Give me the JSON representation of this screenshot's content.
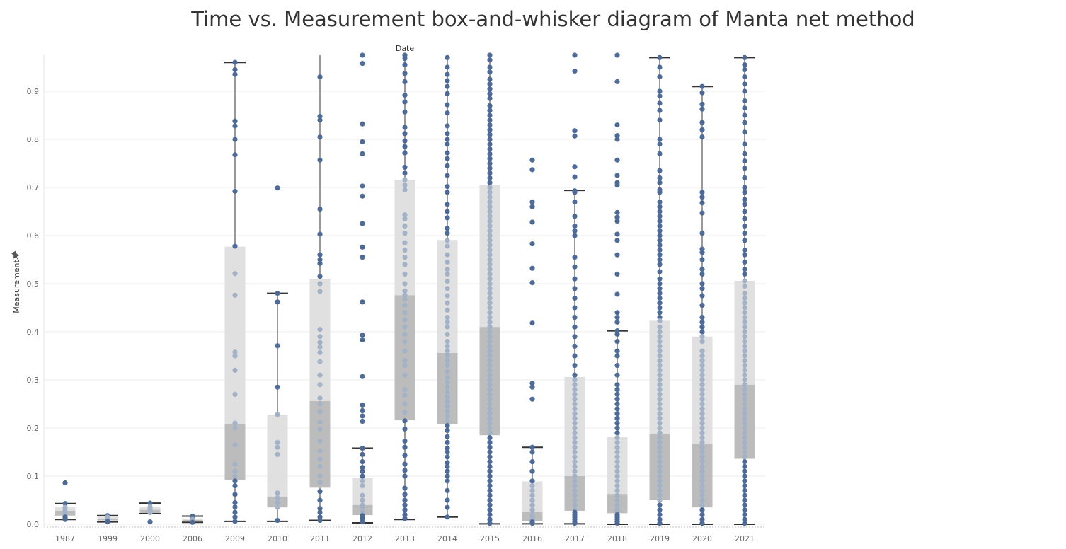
{
  "title": "Time vs. Measurement box-and-whisker diagram of Manta net method",
  "chart_data": {
    "type": "scatter",
    "subtype": "box-and-whisker with jittered points",
    "title": "Time vs. Measurement box-and-whisker diagram of Manta net method",
    "xlabel": "Date",
    "ylabel": "Measurement",
    "categories": [
      "1987",
      "1999",
      "2000",
      "2006",
      "2009",
      "2010",
      "2011",
      "2012",
      "2013",
      "2014",
      "2015",
      "2016",
      "2017",
      "2018",
      "2019",
      "2020",
      "2021"
    ],
    "ylim": [
      0,
      0.98
    ],
    "yticks": [
      0.0,
      0.1,
      0.2,
      0.3,
      0.4,
      0.5,
      0.6,
      0.7,
      0.8,
      0.9
    ],
    "ytick_labels": [
      "0.0",
      "0.1",
      "0.2",
      "0.3",
      "0.4",
      "0.5",
      "0.6",
      "0.7",
      "0.8",
      "0.9"
    ],
    "grid": true,
    "colors": {
      "point_outside": "#4e6a96",
      "point_inside": "#a4b2c7",
      "upper_box": "#e0e0e0",
      "lower_box": "#bcbcbc",
      "whisker": "#333333"
    },
    "boxes": [
      {
        "category": "1987",
        "q1": 0.018,
        "median": 0.028,
        "q3": 0.035,
        "whisker_low": 0.01,
        "whisker_high": 0.043
      },
      {
        "category": "1999",
        "q1": 0.008,
        "median": 0.012,
        "q3": 0.016,
        "whisker_low": 0.005,
        "whisker_high": 0.018
      },
      {
        "category": "2000",
        "q1": 0.022,
        "median": 0.03,
        "q3": 0.036,
        "whisker_low": 0.022,
        "whisker_high": 0.044
      },
      {
        "category": "2006",
        "q1": 0.006,
        "median": 0.009,
        "q3": 0.012,
        "whisker_low": 0.004,
        "whisker_high": 0.017
      },
      {
        "category": "2009",
        "q1": 0.092,
        "median": 0.208,
        "q3": 0.577,
        "whisker_low": 0.006,
        "whisker_high": 0.96
      },
      {
        "category": "2010",
        "q1": 0.035,
        "median": 0.057,
        "q3": 0.228,
        "whisker_low": 0.006,
        "whisker_high": 0.48
      },
      {
        "category": "2011",
        "q1": 0.076,
        "median": 0.256,
        "q3": 0.51,
        "whisker_low": 0.008,
        "whisker_high": 0.98
      },
      {
        "category": "2012",
        "q1": 0.019,
        "median": 0.04,
        "q3": 0.096,
        "whisker_low": 0.003,
        "whisker_high": 0.158
      },
      {
        "category": "2013",
        "q1": 0.216,
        "median": 0.476,
        "q3": 0.716,
        "whisker_low": 0.01,
        "whisker_high": 0.98
      },
      {
        "category": "2014",
        "q1": 0.208,
        "median": 0.356,
        "q3": 0.591,
        "whisker_low": 0.015,
        "whisker_high": 0.98
      },
      {
        "category": "2015",
        "q1": 0.185,
        "median": 0.41,
        "q3": 0.705,
        "whisker_low": 0.001,
        "whisker_high": 0.98
      },
      {
        "category": "2016",
        "q1": 0.006,
        "median": 0.025,
        "q3": 0.089,
        "whisker_low": 0.001,
        "whisker_high": 0.16
      },
      {
        "category": "2017",
        "q1": 0.028,
        "median": 0.1,
        "q3": 0.306,
        "whisker_low": 0.001,
        "whisker_high": 0.694
      },
      {
        "category": "2018",
        "q1": 0.023,
        "median": 0.063,
        "q3": 0.181,
        "whisker_low": 0.0,
        "whisker_high": 0.402
      },
      {
        "category": "2019",
        "q1": 0.05,
        "median": 0.187,
        "q3": 0.423,
        "whisker_low": 0.0,
        "whisker_high": 0.97
      },
      {
        "category": "2020",
        "q1": 0.035,
        "median": 0.167,
        "q3": 0.39,
        "whisker_low": 0.0,
        "whisker_high": 0.91
      },
      {
        "category": "2021",
        "q1": 0.136,
        "median": 0.29,
        "q3": 0.506,
        "whisker_low": 0.0,
        "whisker_high": 0.97
      }
    ],
    "points": {
      "1987": [
        0.086,
        0.043,
        0.035,
        0.028,
        0.025,
        0.02,
        0.015,
        0.012,
        0.01
      ],
      "1999": [
        0.018,
        0.015,
        0.012,
        0.01,
        0.008,
        0.006,
        0.005
      ],
      "2000": [
        0.044,
        0.036,
        0.032,
        0.028,
        0.024,
        0.005
      ],
      "2006": [
        0.017,
        0.013,
        0.01,
        0.008,
        0.006,
        0.004
      ],
      "2009": [
        0.96,
        0.945,
        0.935,
        0.838,
        0.828,
        0.8,
        0.768,
        0.692,
        0.578,
        0.521,
        0.476,
        0.358,
        0.35,
        0.32,
        0.27,
        0.21,
        0.2,
        0.165,
        0.125,
        0.11,
        0.1,
        0.09,
        0.08,
        0.062,
        0.045,
        0.036,
        0.025,
        0.015,
        0.006
      ],
      "2010": [
        0.699,
        0.48,
        0.462,
        0.371,
        0.285,
        0.228,
        0.17,
        0.16,
        0.145,
        0.065,
        0.055,
        0.045,
        0.035,
        0.008
      ],
      "2011": [
        0.93,
        0.848,
        0.84,
        0.805,
        0.757,
        0.655,
        0.603,
        0.56,
        0.55,
        0.542,
        0.515,
        0.5,
        0.484,
        0.405,
        0.39,
        0.378,
        0.368,
        0.357,
        0.338,
        0.31,
        0.29,
        0.262,
        0.25,
        0.234,
        0.212,
        0.198,
        0.173,
        0.152,
        0.135,
        0.12,
        0.1,
        0.087,
        0.068,
        0.05,
        0.033,
        0.025,
        0.015,
        0.008
      ],
      "2012": [
        0.978,
        0.958,
        0.832,
        0.795,
        0.77,
        0.703,
        0.682,
        0.625,
        0.576,
        0.555,
        0.462,
        0.393,
        0.383,
        0.307,
        0.248,
        0.236,
        0.225,
        0.214,
        0.158,
        0.145,
        0.13,
        0.118,
        0.11,
        0.1,
        0.09,
        0.08,
        0.06,
        0.05,
        0.04,
        0.035,
        0.025,
        0.018,
        0.012,
        0.005
      ],
      "2013": [
        0.978,
        0.968,
        0.955,
        0.937,
        0.92,
        0.892,
        0.878,
        0.857,
        0.825,
        0.812,
        0.797,
        0.785,
        0.772,
        0.742,
        0.73,
        0.716,
        0.705,
        0.695,
        0.643,
        0.635,
        0.62,
        0.605,
        0.585,
        0.57,
        0.555,
        0.54,
        0.52,
        0.5,
        0.485,
        0.476,
        0.468,
        0.455,
        0.44,
        0.425,
        0.41,
        0.395,
        0.38,
        0.36,
        0.34,
        0.33,
        0.31,
        0.28,
        0.268,
        0.25,
        0.233,
        0.215,
        0.198,
        0.173,
        0.16,
        0.143,
        0.125,
        0.112,
        0.1,
        0.075,
        0.062,
        0.05,
        0.04,
        0.03,
        0.02,
        0.012
      ],
      "2014": [
        0.97,
        0.95,
        0.935,
        0.922,
        0.91,
        0.895,
        0.872,
        0.855,
        0.828,
        0.812,
        0.8,
        0.79,
        0.772,
        0.76,
        0.745,
        0.725,
        0.702,
        0.69,
        0.665,
        0.65,
        0.637,
        0.615,
        0.605,
        0.59,
        0.578,
        0.56,
        0.545,
        0.53,
        0.52,
        0.505,
        0.49,
        0.475,
        0.46,
        0.445,
        0.43,
        0.42,
        0.41,
        0.395,
        0.38,
        0.37,
        0.36,
        0.35,
        0.34,
        0.33,
        0.318,
        0.305,
        0.295,
        0.285,
        0.275,
        0.265,
        0.255,
        0.245,
        0.235,
        0.225,
        0.215,
        0.205,
        0.195,
        0.182,
        0.17,
        0.158,
        0.15,
        0.14,
        0.128,
        0.12,
        0.11,
        0.1,
        0.09,
        0.07,
        0.05,
        0.035,
        0.015
      ],
      "2015": [
        0.975,
        0.965,
        0.95,
        0.94,
        0.925,
        0.915,
        0.905,
        0.895,
        0.885,
        0.87,
        0.86,
        0.85,
        0.84,
        0.83,
        0.82,
        0.81,
        0.8,
        0.79,
        0.78,
        0.77,
        0.76,
        0.75,
        0.74,
        0.73,
        0.72,
        0.71,
        0.7,
        0.69,
        0.68,
        0.67,
        0.66,
        0.65,
        0.64,
        0.63,
        0.62,
        0.61,
        0.6,
        0.59,
        0.58,
        0.57,
        0.56,
        0.55,
        0.54,
        0.53,
        0.52,
        0.51,
        0.5,
        0.49,
        0.48,
        0.47,
        0.46,
        0.45,
        0.44,
        0.43,
        0.42,
        0.41,
        0.4,
        0.39,
        0.38,
        0.37,
        0.36,
        0.35,
        0.34,
        0.33,
        0.32,
        0.31,
        0.3,
        0.29,
        0.28,
        0.27,
        0.26,
        0.25,
        0.24,
        0.23,
        0.22,
        0.21,
        0.2,
        0.19,
        0.18,
        0.17,
        0.16,
        0.15,
        0.14,
        0.13,
        0.12,
        0.11,
        0.1,
        0.09,
        0.08,
        0.07,
        0.06,
        0.05,
        0.04,
        0.03,
        0.02,
        0.01,
        0.002
      ],
      "2016": [
        0.757,
        0.737,
        0.67,
        0.66,
        0.628,
        0.583,
        0.532,
        0.502,
        0.418,
        0.293,
        0.285,
        0.26,
        0.16,
        0.15,
        0.13,
        0.11,
        0.09,
        0.08,
        0.07,
        0.06,
        0.05,
        0.04,
        0.03,
        0.02,
        0.015,
        0.01,
        0.005,
        0.002
      ],
      "2017": [
        0.976,
        0.942,
        0.818,
        0.807,
        0.743,
        0.722,
        0.693,
        0.69,
        0.67,
        0.64,
        0.62,
        0.61,
        0.6,
        0.555,
        0.535,
        0.51,
        0.49,
        0.47,
        0.45,
        0.43,
        0.41,
        0.39,
        0.37,
        0.35,
        0.33,
        0.31,
        0.3,
        0.29,
        0.28,
        0.27,
        0.26,
        0.25,
        0.24,
        0.23,
        0.22,
        0.21,
        0.2,
        0.19,
        0.18,
        0.17,
        0.16,
        0.15,
        0.14,
        0.13,
        0.12,
        0.11,
        0.1,
        0.09,
        0.08,
        0.07,
        0.06,
        0.05,
        0.04,
        0.03,
        0.025,
        0.02,
        0.015,
        0.01,
        0.005,
        0.002
      ],
      "2018": [
        0.975,
        0.92,
        0.83,
        0.808,
        0.8,
        0.757,
        0.725,
        0.71,
        0.705,
        0.648,
        0.638,
        0.63,
        0.603,
        0.59,
        0.56,
        0.52,
        0.478,
        0.44,
        0.43,
        0.42,
        0.402,
        0.395,
        0.38,
        0.36,
        0.35,
        0.33,
        0.31,
        0.29,
        0.28,
        0.27,
        0.26,
        0.25,
        0.24,
        0.23,
        0.22,
        0.21,
        0.2,
        0.19,
        0.18,
        0.17,
        0.16,
        0.15,
        0.14,
        0.13,
        0.12,
        0.11,
        0.1,
        0.09,
        0.08,
        0.07,
        0.06,
        0.05,
        0.04,
        0.03,
        0.02,
        0.015,
        0.01,
        0.005,
        0.002
      ],
      "2019": [
        0.97,
        0.95,
        0.93,
        0.9,
        0.89,
        0.875,
        0.86,
        0.84,
        0.8,
        0.79,
        0.77,
        0.735,
        0.72,
        0.71,
        0.695,
        0.69,
        0.67,
        0.66,
        0.65,
        0.64,
        0.63,
        0.62,
        0.61,
        0.6,
        0.59,
        0.58,
        0.57,
        0.56,
        0.55,
        0.54,
        0.525,
        0.51,
        0.5,
        0.49,
        0.48,
        0.47,
        0.46,
        0.45,
        0.44,
        0.43,
        0.423,
        0.41,
        0.4,
        0.39,
        0.38,
        0.37,
        0.36,
        0.35,
        0.34,
        0.33,
        0.32,
        0.31,
        0.3,
        0.29,
        0.28,
        0.27,
        0.26,
        0.25,
        0.24,
        0.23,
        0.22,
        0.21,
        0.2,
        0.19,
        0.18,
        0.17,
        0.16,
        0.15,
        0.14,
        0.13,
        0.12,
        0.11,
        0.1,
        0.09,
        0.08,
        0.07,
        0.06,
        0.05,
        0.04,
        0.03,
        0.02,
        0.01,
        0.002
      ],
      "2020": [
        0.91,
        0.897,
        0.873,
        0.863,
        0.835,
        0.82,
        0.805,
        0.69,
        0.68,
        0.668,
        0.647,
        0.605,
        0.572,
        0.565,
        0.55,
        0.53,
        0.52,
        0.5,
        0.49,
        0.475,
        0.455,
        0.43,
        0.42,
        0.41,
        0.4,
        0.39,
        0.38,
        0.36,
        0.35,
        0.34,
        0.33,
        0.32,
        0.31,
        0.3,
        0.29,
        0.28,
        0.27,
        0.26,
        0.25,
        0.24,
        0.23,
        0.22,
        0.21,
        0.2,
        0.19,
        0.18,
        0.17,
        0.16,
        0.15,
        0.14,
        0.13,
        0.12,
        0.11,
        0.1,
        0.09,
        0.08,
        0.07,
        0.06,
        0.05,
        0.04,
        0.03,
        0.02,
        0.01,
        0.002
      ],
      "2021": [
        0.97,
        0.955,
        0.945,
        0.93,
        0.915,
        0.9,
        0.88,
        0.865,
        0.85,
        0.835,
        0.815,
        0.79,
        0.77,
        0.755,
        0.74,
        0.72,
        0.7,
        0.69,
        0.675,
        0.665,
        0.65,
        0.635,
        0.62,
        0.605,
        0.59,
        0.57,
        0.56,
        0.545,
        0.53,
        0.52,
        0.506,
        0.495,
        0.48,
        0.47,
        0.46,
        0.45,
        0.44,
        0.43,
        0.42,
        0.41,
        0.4,
        0.39,
        0.38,
        0.37,
        0.36,
        0.35,
        0.34,
        0.33,
        0.32,
        0.31,
        0.3,
        0.29,
        0.28,
        0.27,
        0.26,
        0.25,
        0.24,
        0.23,
        0.22,
        0.21,
        0.2,
        0.19,
        0.18,
        0.17,
        0.16,
        0.15,
        0.14,
        0.13,
        0.12,
        0.11,
        0.1,
        0.09,
        0.08,
        0.07,
        0.06,
        0.05,
        0.04,
        0.03,
        0.02,
        0.01,
        0.002
      ]
    }
  }
}
